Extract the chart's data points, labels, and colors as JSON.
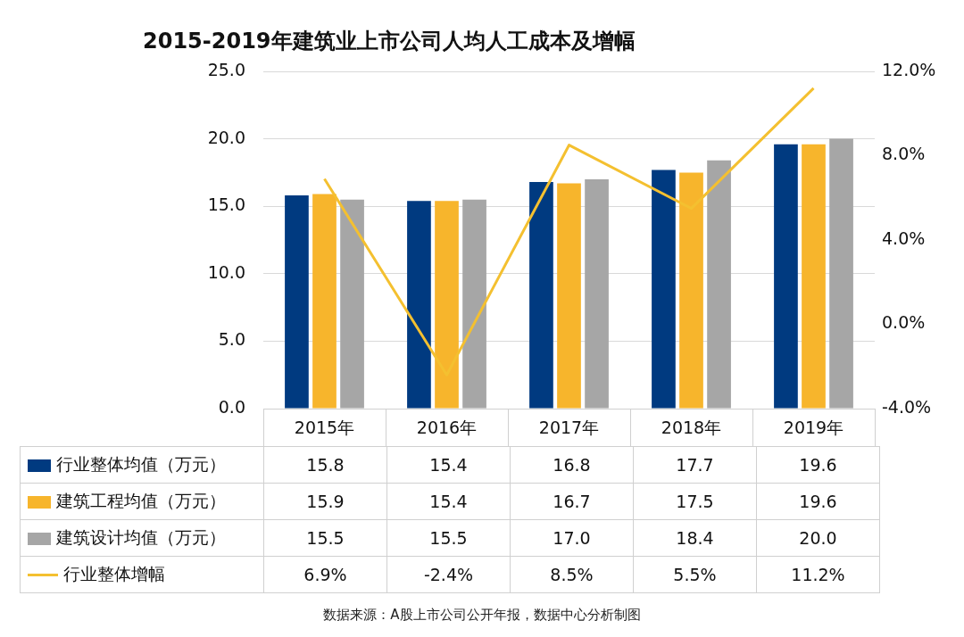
{
  "chart_data": {
    "type": "bar",
    "title": "2015-2019年建筑业上市公司人均人工成本及增幅",
    "categories": [
      "2015年",
      "2016年",
      "2017年",
      "2018年",
      "2019年"
    ],
    "series": [
      {
        "name": "行业整体均值（万元）",
        "color": "#003a80",
        "values": [
          15.8,
          15.4,
          16.8,
          17.7,
          19.6
        ],
        "value_labels": [
          "15.8",
          "15.4",
          "16.8",
          "17.7",
          "19.6"
        ]
      },
      {
        "name": "建筑工程均值（万元）",
        "color": "#f7b52c",
        "values": [
          15.9,
          15.4,
          16.7,
          17.5,
          19.6
        ],
        "value_labels": [
          "15.9",
          "15.4",
          "16.7",
          "17.5",
          "19.6"
        ]
      },
      {
        "name": "建筑设计均值（万元）",
        "color": "#a6a6a6",
        "values": [
          15.5,
          15.5,
          17.0,
          18.4,
          20.0
        ],
        "value_labels": [
          "15.5",
          "15.5",
          "17.0",
          "18.4",
          "20.0"
        ]
      },
      {
        "name": "行业整体增幅",
        "type": "line",
        "axis": "y2",
        "color": "#f4c030",
        "values": [
          6.9,
          -2.4,
          8.5,
          5.5,
          11.2
        ],
        "value_labels": [
          "6.9%",
          "-2.4%",
          "8.5%",
          "5.5%",
          "11.2%"
        ]
      }
    ],
    "ylim": [
      0,
      25
    ],
    "yticks": [
      {
        "value": 0,
        "label": "0.0"
      },
      {
        "value": 5,
        "label": "5.0"
      },
      {
        "value": 10,
        "label": "10.0"
      },
      {
        "value": 15,
        "label": "15.0"
      },
      {
        "value": 20,
        "label": "20.0"
      },
      {
        "value": 25,
        "label": "25.0"
      }
    ],
    "y2lim": [
      -4,
      12
    ],
    "y2ticks": [
      {
        "value": -4,
        "label": "-4.0%"
      },
      {
        "value": 0,
        "label": "0.0%"
      },
      {
        "value": 4,
        "label": "4.0%"
      },
      {
        "value": 8,
        "label": "8.0%"
      },
      {
        "value": 12,
        "label": "12.0%"
      }
    ],
    "grid": "y",
    "legend": "bottom",
    "marker": "none",
    "annotations": [
      "数据来源：A股上市公司公开年报，数据中心分析制图"
    ]
  }
}
